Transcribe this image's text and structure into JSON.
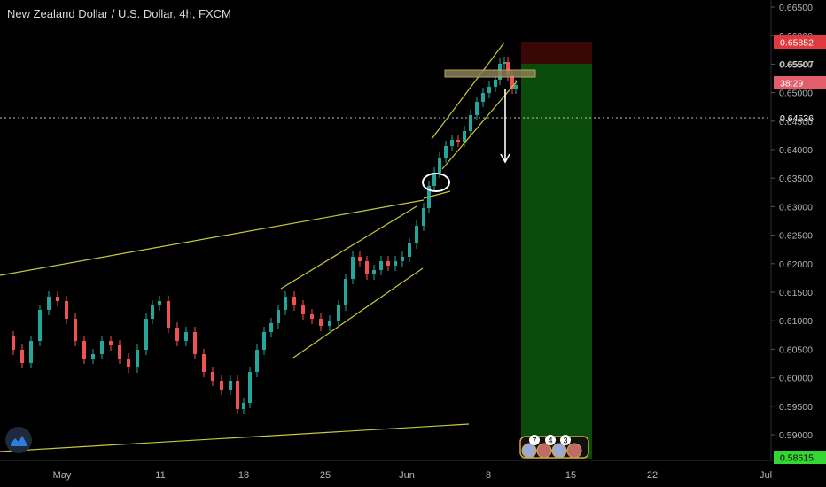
{
  "header": {
    "title": "New Zealand Dollar / U.S. Dollar, 4h, FXCM"
  },
  "price_axis": {
    "ticks": [
      "0.66500",
      "0.66000",
      "0.65500",
      "0.65000",
      "0.64500",
      "0.64000",
      "0.63500",
      "0.63000",
      "0.62500",
      "0.62000",
      "0.61500",
      "0.61000",
      "0.60500",
      "0.60000",
      "0.59500",
      "0.59000"
    ],
    "tags": [
      {
        "label": "0.65852",
        "bg": "#e03a3e",
        "fg": "#ffffff"
      },
      {
        "label": "0.65507",
        "bg": "#000000",
        "fg": "#d9d9d9"
      },
      {
        "label": "38:29",
        "bg": "#e35d6a",
        "fg": "#ffffff"
      },
      {
        "label": "0.64536",
        "bg": "#000000",
        "fg": "#ffffff"
      },
      {
        "label": "0.58615",
        "bg": "#33d633",
        "fg": "#000000"
      }
    ]
  },
  "time_axis": {
    "labels": [
      "May",
      "11",
      "18",
      "25",
      "Jun",
      "8",
      "15",
      "22",
      "Jul"
    ]
  },
  "events": {
    "badges": [
      "7",
      "4",
      "3"
    ]
  },
  "colors": {
    "up": "#26a69a",
    "down": "#ef5350",
    "trendline": "#d4d43c",
    "target_zone": "#0b4a0b",
    "stop_zone": "#4a0606",
    "background": "#000000"
  }
}
